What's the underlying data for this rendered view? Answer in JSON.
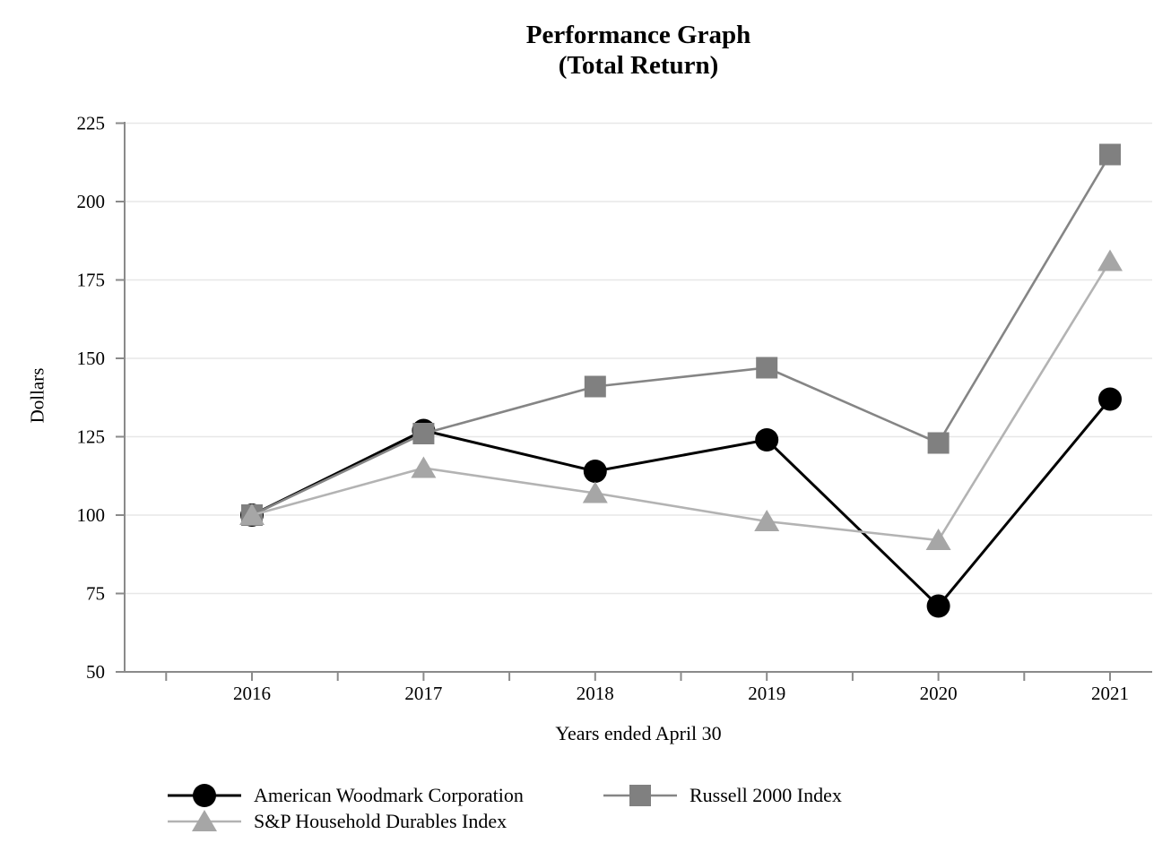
{
  "title": {
    "line1": "Performance Graph",
    "line2": "(Total Return)"
  },
  "chart_data": {
    "type": "line",
    "title": "Performance Graph (Total Return)",
    "xlabel": "Years ended April 30",
    "ylabel": "Dollars",
    "categories": [
      "2016",
      "2017",
      "2018",
      "2019",
      "2020",
      "2021"
    ],
    "series": [
      {
        "name": "American Woodmark Corporation",
        "marker": "circle",
        "marker_color": "#000000",
        "line_color": "#000000",
        "values": [
          100,
          127,
          114,
          124,
          71,
          137
        ]
      },
      {
        "name": "Russell 2000 Index",
        "marker": "square",
        "marker_color": "#808080",
        "line_color": "#858585",
        "values": [
          100,
          126,
          141,
          147,
          123,
          215
        ]
      },
      {
        "name": "S&P Household Durables Index",
        "marker": "triangle",
        "marker_color": "#a6a6a6",
        "line_color": "#b3b3b3",
        "values": [
          100,
          115,
          107,
          98,
          92,
          181
        ]
      }
    ],
    "y_ticks": [
      50,
      75,
      100,
      125,
      150,
      175,
      200,
      225
    ],
    "ylim": [
      50,
      225
    ],
    "grid": true,
    "legend_position": "bottom"
  },
  "colors": {
    "axis": "#8a8a8a",
    "gridline": "#e7e7e7",
    "background": "#ffffff",
    "text": "#000000"
  }
}
